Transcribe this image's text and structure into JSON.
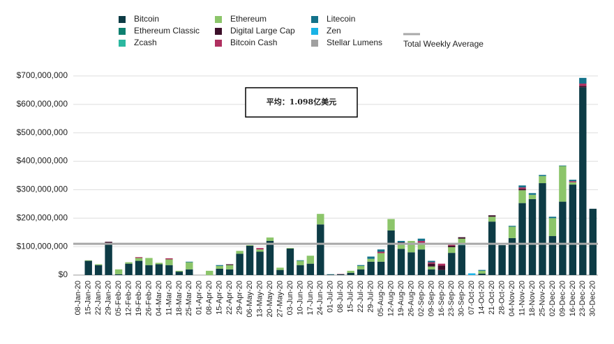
{
  "chart_data": {
    "type": "bar",
    "stacked": true,
    "annotation": "平均：1.098亿美元",
    "categories": [
      "08-Jan-20",
      "15-Jan-20",
      "22-Jan-20",
      "29-Jan-20",
      "05-Feb-20",
      "12-Feb-20",
      "19-Feb-20",
      "26-Feb-20",
      "04-Mar-20",
      "11-Mar-20",
      "18-Mar-20",
      "25-Mar-20",
      "01-Apr-20",
      "08-Apr-20",
      "15-Apr-20",
      "22-Apr-20",
      "29-Apr-20",
      "06-May-20",
      "13-May-20",
      "20-May-20",
      "27-May-20",
      "03-Jun-20",
      "10-Jun-20",
      "17-Jun-20",
      "24-Jun-20",
      "01-Jul-20",
      "08-Jul-20",
      "15-Jul-20",
      "22-Jul-20",
      "29-Jul-20",
      "05-Aug-20",
      "12-Aug-20",
      "19-Aug-20",
      "26-Aug-20",
      "02-Sep-20",
      "09-Sep-20",
      "16-Sep-20",
      "23-Sep-20",
      "30-Sep-20",
      "07-Oct-20",
      "14-Oct-20",
      "21-Oct-20",
      "28-Oct-20",
      "04-Nov-20",
      "11-Nov-20",
      "18-Nov-20",
      "25-Nov-20",
      "02-Dec-20",
      "09-Dec-20",
      "16-Dec-20",
      "23-Dec-20",
      "30-Dec-20"
    ],
    "series": [
      {
        "name": "Bitcoin",
        "color": "#0d3b45",
        "values": [
          0,
          50000000,
          35000000,
          112000000,
          3000000,
          40000000,
          50000000,
          35000000,
          38000000,
          35000000,
          12000000,
          20000000,
          0,
          0,
          22000000,
          20000000,
          75000000,
          103000000,
          82000000,
          120000000,
          18000000,
          93000000,
          35000000,
          40000000,
          178000000,
          2000000,
          3000000,
          8000000,
          20000000,
          47000000,
          47000000,
          157000000,
          92000000,
          80000000,
          90000000,
          20000000,
          18000000,
          78000000,
          105000000,
          0,
          5000000,
          188000000,
          105000000,
          130000000,
          253000000,
          267000000,
          323000000,
          137000000,
          258000000,
          318000000,
          660000000,
          233000000
        ]
      },
      {
        "name": "Ethereum Classic",
        "color": "#0e8070",
        "values": [
          0,
          0,
          0,
          0,
          0,
          0,
          0,
          0,
          0,
          0,
          0,
          0,
          0,
          0,
          0,
          0,
          0,
          0,
          0,
          0,
          0,
          0,
          0,
          0,
          0,
          0,
          0,
          0,
          0,
          0,
          0,
          0,
          0,
          0,
          0,
          0,
          0,
          0,
          0,
          0,
          0,
          0,
          0,
          0,
          0,
          0,
          0,
          0,
          0,
          0,
          0,
          0
        ]
      },
      {
        "name": "Zcash",
        "color": "#2bb8a0",
        "values": [
          0,
          0,
          0,
          0,
          0,
          0,
          0,
          0,
          0,
          0,
          0,
          0,
          0,
          0,
          0,
          0,
          0,
          0,
          0,
          0,
          0,
          0,
          0,
          0,
          0,
          0,
          0,
          0,
          0,
          0,
          0,
          0,
          0,
          0,
          0,
          0,
          0,
          0,
          3000000,
          0,
          0,
          0,
          0,
          0,
          0,
          0,
          0,
          0,
          0,
          0,
          0,
          0
        ]
      },
      {
        "name": "Ethereum",
        "color": "#8cc56a",
        "values": [
          0,
          2000000,
          3000000,
          0,
          17000000,
          5000000,
          10000000,
          25000000,
          5000000,
          20000000,
          3000000,
          25000000,
          0,
          15000000,
          10000000,
          15000000,
          10000000,
          2000000,
          8000000,
          12000000,
          8000000,
          2000000,
          15000000,
          28000000,
          37000000,
          0,
          0,
          7000000,
          12000000,
          10000000,
          30000000,
          40000000,
          20000000,
          40000000,
          20000000,
          10000000,
          0,
          20000000,
          20000000,
          0,
          10000000,
          17000000,
          0,
          40000000,
          45000000,
          15000000,
          25000000,
          63000000,
          125000000,
          8000000,
          0,
          0
        ]
      },
      {
        "name": "Digital Large Cap",
        "color": "#3d0f2a",
        "values": [
          0,
          0,
          0,
          5000000,
          0,
          0,
          0,
          0,
          0,
          0,
          0,
          0,
          0,
          0,
          0,
          3000000,
          0,
          0,
          0,
          0,
          0,
          0,
          0,
          0,
          0,
          0,
          0,
          0,
          0,
          0,
          0,
          0,
          3000000,
          0,
          0,
          10000000,
          15000000,
          5000000,
          5000000,
          0,
          0,
          5000000,
          0,
          0,
          5000000,
          0,
          0,
          0,
          0,
          0,
          5000000,
          0
        ]
      },
      {
        "name": "Bitcoin Cash",
        "color": "#b03060",
        "values": [
          0,
          0,
          0,
          0,
          0,
          0,
          3000000,
          0,
          0,
          4000000,
          0,
          0,
          0,
          0,
          0,
          0,
          0,
          0,
          5000000,
          0,
          0,
          0,
          0,
          0,
          0,
          0,
          1000000,
          0,
          0,
          0,
          5000000,
          0,
          0,
          0,
          10000000,
          5000000,
          7000000,
          7000000,
          0,
          0,
          0,
          0,
          0,
          0,
          5000000,
          0,
          0,
          0,
          0,
          4000000,
          8000000,
          0
        ]
      },
      {
        "name": "Litecoin",
        "color": "#13728a",
        "values": [
          0,
          0,
          0,
          0,
          0,
          0,
          0,
          0,
          0,
          0,
          0,
          2000000,
          0,
          0,
          3000000,
          0,
          0,
          0,
          0,
          0,
          0,
          0,
          2000000,
          0,
          0,
          1000000,
          0,
          0,
          3000000,
          8000000,
          8000000,
          0,
          5000000,
          0,
          8000000,
          5000000,
          0,
          0,
          0,
          0,
          3000000,
          0,
          0,
          3000000,
          7000000,
          6000000,
          4000000,
          5000000,
          2000000,
          5000000,
          20000000,
          0
        ]
      },
      {
        "name": "Zen",
        "color": "#19b3e6",
        "values": [
          0,
          0,
          0,
          0,
          0,
          0,
          0,
          0,
          0,
          0,
          0,
          0,
          0,
          0,
          0,
          0,
          0,
          0,
          0,
          0,
          0,
          0,
          0,
          0,
          0,
          0,
          0,
          0,
          0,
          0,
          0,
          0,
          0,
          0,
          0,
          0,
          0,
          0,
          0,
          6000000,
          0,
          0,
          0,
          0,
          0,
          0,
          0,
          0,
          0,
          0,
          0,
          0
        ]
      },
      {
        "name": "Stellar Lumens",
        "color": "#a0a0a0",
        "values": [
          0,
          0,
          0,
          0,
          0,
          0,
          0,
          0,
          0,
          0,
          0,
          0,
          0,
          0,
          0,
          0,
          0,
          0,
          0,
          0,
          0,
          0,
          0,
          0,
          0,
          0,
          0,
          0,
          0,
          0,
          0,
          0,
          0,
          0,
          0,
          0,
          0,
          0,
          0,
          0,
          0,
          0,
          0,
          0,
          0,
          0,
          0,
          0,
          0,
          0,
          0,
          0
        ]
      }
    ],
    "average": {
      "name": "Total Weekly Average",
      "value": 109800000,
      "color": "#a8a8a8"
    },
    "ylim": [
      0,
      700000000
    ],
    "yticks": [
      {
        "value": 0,
        "label": "$0"
      },
      {
        "value": 100000000,
        "label": "$100,000,000"
      },
      {
        "value": 200000000,
        "label": "$200,000,000"
      },
      {
        "value": 300000000,
        "label": "$300,000,000"
      },
      {
        "value": 400000000,
        "label": "$400,000,000"
      },
      {
        "value": 500000000,
        "label": "$500,000,000"
      },
      {
        "value": 600000000,
        "label": "$600,000,000"
      },
      {
        "value": 700000000,
        "label": "$700,000,000"
      }
    ],
    "grid": true
  }
}
